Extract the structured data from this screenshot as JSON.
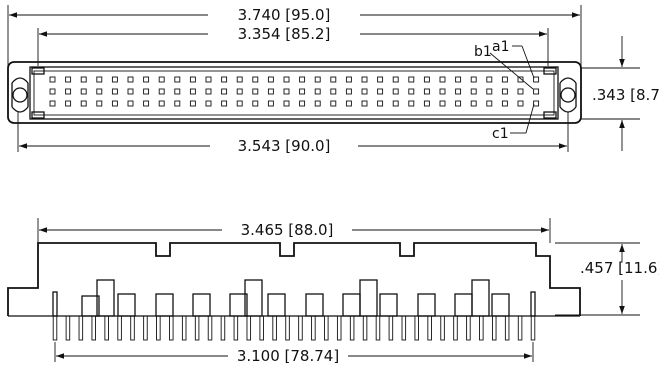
{
  "top_view": {
    "dim_overall": "3.740 [95.0]",
    "dim_pin_span": "3.354 [85.2]",
    "dim_height": ".343 [8.7]",
    "dim_mount_holes": "3.543 [90.0]",
    "label_a1": "a1",
    "label_b1": "b1",
    "label_c1": "c1"
  },
  "side_view": {
    "dim_body_width": "3.465 [88.0]",
    "dim_height": ".457 [11.6]",
    "dim_pin_span": "3.100 [78.74]"
  }
}
